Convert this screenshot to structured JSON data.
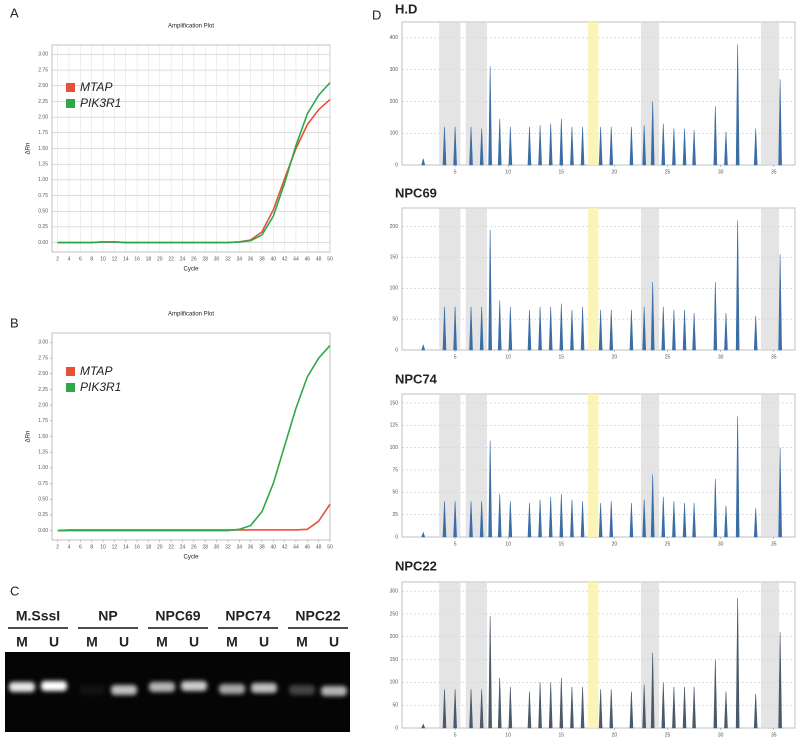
{
  "panels": [
    "A",
    "B",
    "C",
    "D"
  ],
  "chart_data": [
    {
      "type": "line",
      "title": "Amplification Plot",
      "xlabel": "Cycle",
      "ylabel": "ΔRn",
      "xlim": [
        1,
        50
      ],
      "ylim": [
        -0.15,
        3.15
      ],
      "xticks": [
        2,
        4,
        6,
        8,
        10,
        12,
        14,
        16,
        18,
        20,
        22,
        24,
        26,
        28,
        30,
        32,
        34,
        36,
        38,
        40,
        42,
        44,
        46,
        48,
        50
      ],
      "yticks": [
        {
          "value": 0,
          "label": "0.00"
        },
        {
          "value": 0.25,
          "label": "0.25"
        },
        {
          "value": 0.5,
          "label": "0.50"
        },
        {
          "value": 0.75,
          "label": "0.75"
        },
        {
          "value": 1,
          "label": "1.00"
        },
        {
          "value": 1.25,
          "label": "1.25"
        },
        {
          "value": 1.5,
          "label": "1.50"
        },
        {
          "value": 1.75,
          "label": "1.75"
        },
        {
          "value": 2,
          "label": "2.00"
        },
        {
          "value": 2.25,
          "label": "2.25"
        },
        {
          "value": 2.5,
          "label": "2.50"
        },
        {
          "value": 2.75,
          "label": "2.75"
        },
        {
          "value": 3,
          "label": "3.00"
        }
      ],
      "grid": true,
      "x": [
        2,
        4,
        6,
        8,
        10,
        12,
        14,
        16,
        18,
        20,
        22,
        24,
        26,
        28,
        30,
        32,
        34,
        36,
        38,
        40,
        42,
        44,
        46,
        48,
        50
      ],
      "series": [
        {
          "name": "MTAP",
          "color": "#e8503a",
          "values": [
            0,
            0,
            0,
            0,
            0.01,
            0.01,
            0,
            0,
            0,
            0,
            0,
            0,
            0,
            0,
            0,
            0,
            0.01,
            0.04,
            0.17,
            0.52,
            1.02,
            1.5,
            1.88,
            2.12,
            2.28
          ]
        },
        {
          "name": "PIK3R1",
          "color": "#2ea84a",
          "values": [
            0,
            0,
            0,
            0,
            0.01,
            0.01,
            0,
            0,
            0,
            0,
            0,
            0,
            0,
            0,
            0,
            0,
            0.01,
            0.03,
            0.12,
            0.42,
            0.95,
            1.55,
            2.05,
            2.35,
            2.55
          ]
        }
      ]
    },
    {
      "type": "line",
      "title": "Amplification Plot",
      "xlabel": "Cycle",
      "ylabel": "ΔRn",
      "xlim": [
        1,
        50
      ],
      "ylim": [
        -0.15,
        3.15
      ],
      "xticks": [
        2,
        4,
        6,
        8,
        10,
        12,
        14,
        16,
        18,
        20,
        22,
        24,
        26,
        28,
        30,
        32,
        34,
        36,
        38,
        40,
        42,
        44,
        46,
        48,
        50
      ],
      "yticks": [
        {
          "value": 0,
          "label": "0.00"
        },
        {
          "value": 0.25,
          "label": "0.25"
        },
        {
          "value": 0.5,
          "label": "0.50"
        },
        {
          "value": 0.75,
          "label": "0.75"
        },
        {
          "value": 1,
          "label": "1.00"
        },
        {
          "value": 1.25,
          "label": "1.25"
        },
        {
          "value": 1.5,
          "label": "1.50"
        },
        {
          "value": 1.75,
          "label": "1.75"
        },
        {
          "value": 2,
          "label": "2.00"
        },
        {
          "value": 2.25,
          "label": "2.25"
        },
        {
          "value": 2.5,
          "label": "2.50"
        },
        {
          "value": 2.75,
          "label": "2.75"
        },
        {
          "value": 3,
          "label": "3.00"
        }
      ],
      "grid": false,
      "x": [
        2,
        4,
        6,
        8,
        10,
        12,
        14,
        16,
        18,
        20,
        22,
        24,
        26,
        28,
        30,
        32,
        34,
        36,
        38,
        40,
        42,
        44,
        46,
        48,
        50
      ],
      "series": [
        {
          "name": "MTAP",
          "color": "#e8503a",
          "values": [
            0,
            0.01,
            0.01,
            0.01,
            0.01,
            0.01,
            0.01,
            0.01,
            0.01,
            0.01,
            0.01,
            0.01,
            0.01,
            0.01,
            0.01,
            0.01,
            0.01,
            0.01,
            0.01,
            0.01,
            0.01,
            0.01,
            0.02,
            0.15,
            0.42
          ]
        },
        {
          "name": "PIK3R1",
          "color": "#2ea84a",
          "values": [
            0,
            0,
            0,
            0,
            0,
            0,
            0,
            0,
            0,
            0,
            0,
            0,
            0,
            0,
            0,
            0,
            0.02,
            0.08,
            0.3,
            0.75,
            1.35,
            1.95,
            2.45,
            2.75,
            2.95
          ]
        }
      ]
    },
    {
      "type": "bar",
      "title": "H.D",
      "xlim": [
        0,
        37
      ],
      "ylim": [
        0,
        450
      ],
      "xticks": [
        5,
        10,
        15,
        20,
        25,
        30,
        35
      ],
      "yticks": [
        0,
        100,
        200,
        300,
        400
      ],
      "color": "#3a6ea5",
      "x": [
        2,
        4,
        5,
        6.5,
        7.5,
        8.3,
        9.2,
        10.2,
        12,
        13,
        14,
        15,
        16,
        17,
        18.7,
        19.7,
        21.6,
        22.8,
        23.6,
        24.6,
        25.6,
        26.6,
        27.5,
        29.5,
        30.5,
        31.6,
        33.3,
        35.6
      ],
      "values": [
        20,
        120,
        120,
        120,
        115,
        310,
        145,
        120,
        120,
        125,
        130,
        145,
        120,
        120,
        120,
        120,
        120,
        125,
        200,
        130,
        115,
        115,
        110,
        185,
        105,
        380,
        115,
        270
      ]
    },
    {
      "type": "bar",
      "title": "NPC69",
      "xlim": [
        0,
        37
      ],
      "ylim": [
        0,
        230
      ],
      "xticks": [
        5,
        10,
        15,
        20,
        25,
        30,
        35
      ],
      "yticks": [
        0,
        50,
        100,
        150,
        200
      ],
      "color": "#3a6ea5",
      "x": [
        2,
        4,
        5,
        6.5,
        7.5,
        8.3,
        9.2,
        10.2,
        12,
        13,
        14,
        15,
        16,
        17,
        18.7,
        19.7,
        21.6,
        22.8,
        23.6,
        24.6,
        25.6,
        26.6,
        27.5,
        29.5,
        30.5,
        31.6,
        33.3,
        35.6
      ],
      "values": [
        8,
        70,
        70,
        70,
        70,
        195,
        80,
        70,
        65,
        70,
        70,
        75,
        65,
        70,
        65,
        65,
        65,
        70,
        110,
        70,
        65,
        65,
        60,
        110,
        60,
        210,
        55,
        155
      ]
    },
    {
      "type": "bar",
      "title": "NPC74",
      "xlim": [
        0,
        37
      ],
      "ylim": [
        0,
        160
      ],
      "xticks": [
        5,
        10,
        15,
        20,
        25,
        30,
        35
      ],
      "yticks": [
        0,
        25,
        50,
        75,
        100,
        125,
        150
      ],
      "color": "#3a6ea5",
      "x": [
        2,
        4,
        5,
        6.5,
        7.5,
        8.3,
        9.2,
        10.2,
        12,
        13,
        14,
        15,
        16,
        17,
        18.7,
        19.7,
        21.6,
        22.8,
        23.6,
        24.6,
        25.6,
        26.6,
        27.5,
        29.5,
        30.5,
        31.6,
        33.3,
        35.6
      ],
      "values": [
        5,
        40,
        40,
        40,
        40,
        108,
        48,
        40,
        38,
        42,
        45,
        48,
        42,
        40,
        38,
        40,
        38,
        42,
        70,
        45,
        40,
        38,
        38,
        65,
        35,
        135,
        32,
        100
      ]
    },
    {
      "type": "bar",
      "title": "NPC22",
      "xlim": [
        0,
        37
      ],
      "ylim": [
        0,
        320
      ],
      "xticks": [
        5,
        10,
        15,
        20,
        25,
        30,
        35
      ],
      "yticks": [
        0,
        50,
        100,
        150,
        200,
        250,
        300
      ],
      "color": "#4a5a6a",
      "x": [
        2,
        4,
        5,
        6.5,
        7.5,
        8.3,
        9.2,
        10.2,
        12,
        13,
        14,
        15,
        16,
        17,
        18.7,
        19.7,
        21.6,
        22.8,
        23.6,
        24.6,
        25.6,
        26.6,
        27.5,
        29.5,
        30.5,
        31.6,
        33.3,
        35.6
      ],
      "values": [
        8,
        85,
        85,
        85,
        85,
        245,
        110,
        90,
        80,
        100,
        100,
        110,
        90,
        90,
        85,
        85,
        80,
        95,
        165,
        100,
        90,
        90,
        90,
        150,
        80,
        285,
        75,
        210
      ]
    }
  ],
  "gel": {
    "samples": [
      {
        "name": "M.SssI",
        "lanes": [
          "M",
          "U"
        ]
      },
      {
        "name": "NP",
        "lanes": [
          "M",
          "U"
        ]
      },
      {
        "name": "NPC69",
        "lanes": [
          "M",
          "U"
        ]
      },
      {
        "name": "NPC74",
        "lanes": [
          "M",
          "U"
        ]
      },
      {
        "name": "NPC22",
        "lanes": [
          "M",
          "U"
        ]
      }
    ]
  }
}
